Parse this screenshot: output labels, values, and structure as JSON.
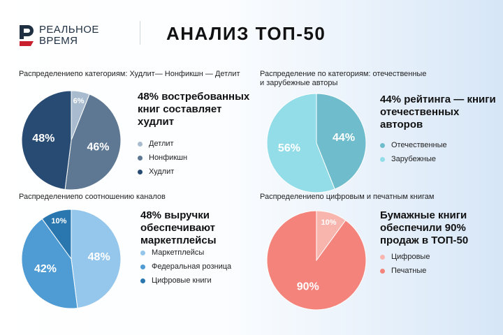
{
  "brand": {
    "line1": "РЕАЛЬНОЕ",
    "line2": "ВРЕМЯ",
    "color": "#c8202d"
  },
  "title": "АНАЛИЗ ТОП-50",
  "chart_data": [
    {
      "type": "pie",
      "title": "Распределениепо категориям: Худлит— Нонфикшн — Детлит",
      "headline": "48% востребованных\nкниг составляет\nхудлит",
      "slices": [
        {
          "label": "Детлит",
          "value": 6,
          "label_text": "6%",
          "color": "#a9bccf"
        },
        {
          "label": "Нонфикшн",
          "value": 46,
          "label_text": "46%",
          "color": "#5e7893"
        },
        {
          "label": "Худлит",
          "value": 48,
          "label_text": "48%",
          "color": "#274b72"
        }
      ]
    },
    {
      "type": "pie",
      "title": "Распределение по категориям: отечественные и зарубежные авторы",
      "headline": "44% рейтинга — книги\nотечественных\nавторов",
      "slices": [
        {
          "label": "Отечественные",
          "value": 44,
          "label_text": "44%",
          "color": "#6fbdcc"
        },
        {
          "label": "Зарубежные",
          "value": 56,
          "label_text": "56%",
          "color": "#93dde9"
        }
      ]
    },
    {
      "type": "pie",
      "title": "Распределениепо соотношению каналов",
      "headline": "48% выручки\nобеспечивают\nмаркетплейсы",
      "slices": [
        {
          "label": "Маркетплейсы",
          "value": 48,
          "label_text": "48%",
          "color": "#95c6eb"
        },
        {
          "label": "Федеральная розница",
          "value": 42,
          "label_text": "42%",
          "color": "#4f9bd3"
        },
        {
          "label": "Цифровые книги",
          "value": 10,
          "label_text": "10%",
          "color": "#2a77b0"
        }
      ]
    },
    {
      "type": "pie",
      "title": "Распределениепо цифровым и печатным книгам",
      "headline": "Бумажные книги\nобеспечили 90%\nпродаж в ТОП-50",
      "slices": [
        {
          "label": "Цифровые",
          "value": 10,
          "label_text": "10%",
          "color": "#f7b5ad"
        },
        {
          "label": "Печатные",
          "value": 90,
          "label_text": "90%",
          "color": "#f4847b"
        }
      ]
    }
  ]
}
